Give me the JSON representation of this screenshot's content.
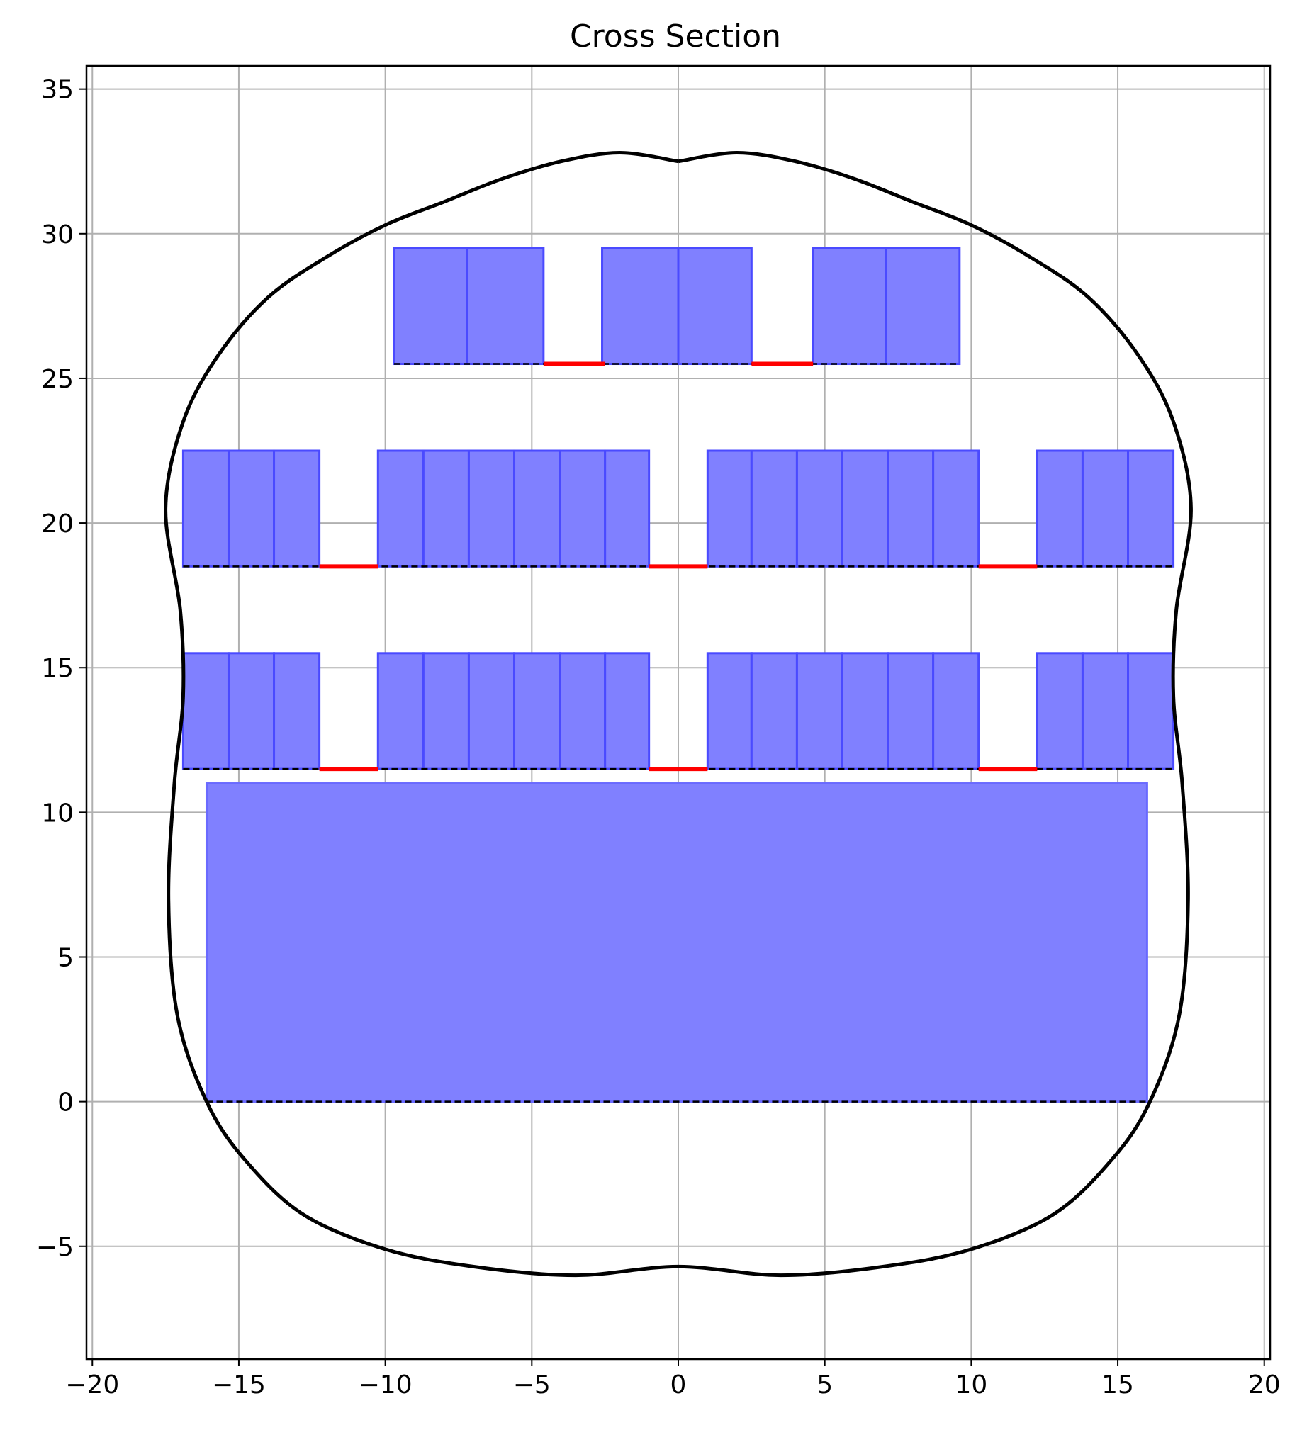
{
  "chart_data": {
    "type": "cross-section",
    "title": "Cross Section",
    "xlabel": "",
    "ylabel": "",
    "xlim": [
      -20.2,
      20.2
    ],
    "ylim": [
      -8.9,
      35.8
    ],
    "xticks": [
      -20,
      -15,
      -10,
      -5,
      0,
      5,
      10,
      15,
      20
    ],
    "xtick_labels": [
      "−20",
      "−15",
      "−10",
      "−5",
      "0",
      "5",
      "10",
      "15",
      "20"
    ],
    "yticks": [
      -5,
      0,
      5,
      10,
      15,
      20,
      25,
      30,
      35
    ],
    "ytick_labels": [
      "−5",
      "0",
      "5",
      "10",
      "15",
      "20",
      "25",
      "30",
      "35"
    ],
    "grid": true,
    "colors": {
      "seat_fill": "#8080ff",
      "seat_edge": "#4a4aff",
      "aisle": "#ff0000",
      "outline": "#000000",
      "grid": "#b0b0b0"
    },
    "floor_block": {
      "x0": -16.1,
      "x1": 16.0,
      "y0": 0.0,
      "y1": 11.0
    },
    "floor_baseline": {
      "x0": -16.1,
      "x1": 16.0,
      "y": 0.0
    },
    "decks": [
      {
        "y0": 11.5,
        "y1": 15.5,
        "baseline": [
          -16.9,
          16.9
        ],
        "seats": [
          [
            -16.9,
            -15.35
          ],
          [
            -15.35,
            -13.8
          ],
          [
            -13.8,
            -12.25
          ],
          [
            -10.25,
            -8.7
          ],
          [
            -8.7,
            -7.15
          ],
          [
            -7.15,
            -5.6
          ],
          [
            -5.6,
            -4.05
          ],
          [
            -4.05,
            -2.5
          ],
          [
            -2.5,
            -1.0
          ],
          [
            1.0,
            2.5
          ],
          [
            2.5,
            4.05
          ],
          [
            4.05,
            5.6
          ],
          [
            5.6,
            7.15
          ],
          [
            7.15,
            8.7
          ],
          [
            8.7,
            10.25
          ],
          [
            12.25,
            13.8
          ],
          [
            13.8,
            15.35
          ],
          [
            15.35,
            16.9
          ]
        ],
        "aisles": [
          [
            -12.25,
            -10.25
          ],
          [
            -1.0,
            1.0
          ],
          [
            10.25,
            12.25
          ]
        ]
      },
      {
        "y0": 18.5,
        "y1": 22.5,
        "baseline": [
          -16.9,
          16.9
        ],
        "seats": [
          [
            -16.9,
            -15.35
          ],
          [
            -15.35,
            -13.8
          ],
          [
            -13.8,
            -12.25
          ],
          [
            -10.25,
            -8.7
          ],
          [
            -8.7,
            -7.15
          ],
          [
            -7.15,
            -5.6
          ],
          [
            -5.6,
            -4.05
          ],
          [
            -4.05,
            -2.5
          ],
          [
            -2.5,
            -1.0
          ],
          [
            1.0,
            2.5
          ],
          [
            2.5,
            4.05
          ],
          [
            4.05,
            5.6
          ],
          [
            5.6,
            7.15
          ],
          [
            7.15,
            8.7
          ],
          [
            8.7,
            10.25
          ],
          [
            12.25,
            13.8
          ],
          [
            13.8,
            15.35
          ],
          [
            15.35,
            16.9
          ]
        ],
        "aisles": [
          [
            -12.25,
            -10.25
          ],
          [
            -1.0,
            1.0
          ],
          [
            10.25,
            12.25
          ]
        ]
      },
      {
        "y0": 25.5,
        "y1": 29.5,
        "baseline": [
          -9.7,
          9.6
        ],
        "seats": [
          [
            -9.7,
            -7.2
          ],
          [
            -7.2,
            -4.6
          ],
          [
            -2.6,
            0.0
          ],
          [
            0.0,
            2.5
          ],
          [
            4.6,
            7.1
          ],
          [
            7.1,
            9.6
          ]
        ],
        "aisles": [
          [
            -4.6,
            -2.5
          ],
          [
            2.5,
            4.6
          ]
        ]
      }
    ],
    "hull_outline": [
      [
        0.0,
        32.5
      ],
      [
        2.0,
        32.8
      ],
      [
        4.0,
        32.5
      ],
      [
        6.0,
        31.9
      ],
      [
        8.0,
        31.1
      ],
      [
        10.0,
        30.3
      ],
      [
        12.0,
        29.2
      ],
      [
        14.0,
        27.8
      ],
      [
        15.7,
        25.8
      ],
      [
        16.9,
        23.5
      ],
      [
        17.5,
        20.5
      ],
      [
        17.0,
        17.0
      ],
      [
        16.9,
        14.0
      ],
      [
        17.2,
        11.0
      ],
      [
        17.4,
        7.0
      ],
      [
        17.1,
        3.0
      ],
      [
        16.1,
        0.0
      ],
      [
        14.8,
        -2.0
      ],
      [
        12.8,
        -3.9
      ],
      [
        10.0,
        -5.1
      ],
      [
        7.0,
        -5.7
      ],
      [
        3.5,
        -6.0
      ],
      [
        0.0,
        -5.7
      ],
      [
        -3.5,
        -6.0
      ],
      [
        -7.0,
        -5.7
      ],
      [
        -10.0,
        -5.1
      ],
      [
        -12.8,
        -3.9
      ],
      [
        -14.8,
        -2.0
      ],
      [
        -16.1,
        0.0
      ],
      [
        -17.1,
        3.0
      ],
      [
        -17.4,
        7.0
      ],
      [
        -17.2,
        11.0
      ],
      [
        -16.9,
        14.0
      ],
      [
        -17.0,
        17.0
      ],
      [
        -17.5,
        20.5
      ],
      [
        -16.9,
        23.5
      ],
      [
        -15.7,
        25.8
      ],
      [
        -14.0,
        27.8
      ],
      [
        -12.0,
        29.2
      ],
      [
        -10.0,
        30.3
      ],
      [
        -8.0,
        31.1
      ],
      [
        -6.0,
        31.9
      ],
      [
        -4.0,
        32.5
      ],
      [
        -2.0,
        32.8
      ],
      [
        0.0,
        32.5
      ]
    ]
  }
}
